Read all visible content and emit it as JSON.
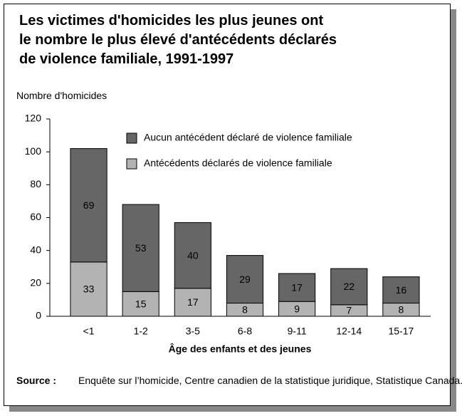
{
  "chart_data": {
    "type": "bar",
    "stacked": true,
    "title": [
      "Les victimes d'homicides les plus jeunes ont",
      "le nombre le plus élevé d'antécédents déclarés",
      "de violence familiale, 1991-1997"
    ],
    "y_label": "Nombre d'homicides",
    "x_label": "Âge des enfants et des jeunes",
    "categories": [
      "<1",
      "1-2",
      "3-5",
      "6-8",
      "9-11",
      "12-14",
      "15-17"
    ],
    "series": [
      {
        "name": "Antécédents déclarés de violence familiale",
        "color": "#b3b3b3",
        "values": [
          33,
          15,
          17,
          8,
          9,
          7,
          8
        ]
      },
      {
        "name": "Aucun antécédent déclaré de violence familiale",
        "color": "#666666",
        "values": [
          69,
          53,
          40,
          29,
          17,
          22,
          16
        ]
      }
    ],
    "ylim": [
      0,
      120
    ],
    "yticks": [
      0,
      20,
      40,
      60,
      80,
      100,
      120
    ],
    "source_label": "Source :",
    "source_text": "Enquête sur l’homicide, Centre canadien de la statistique juridique, Statistique Canada."
  }
}
